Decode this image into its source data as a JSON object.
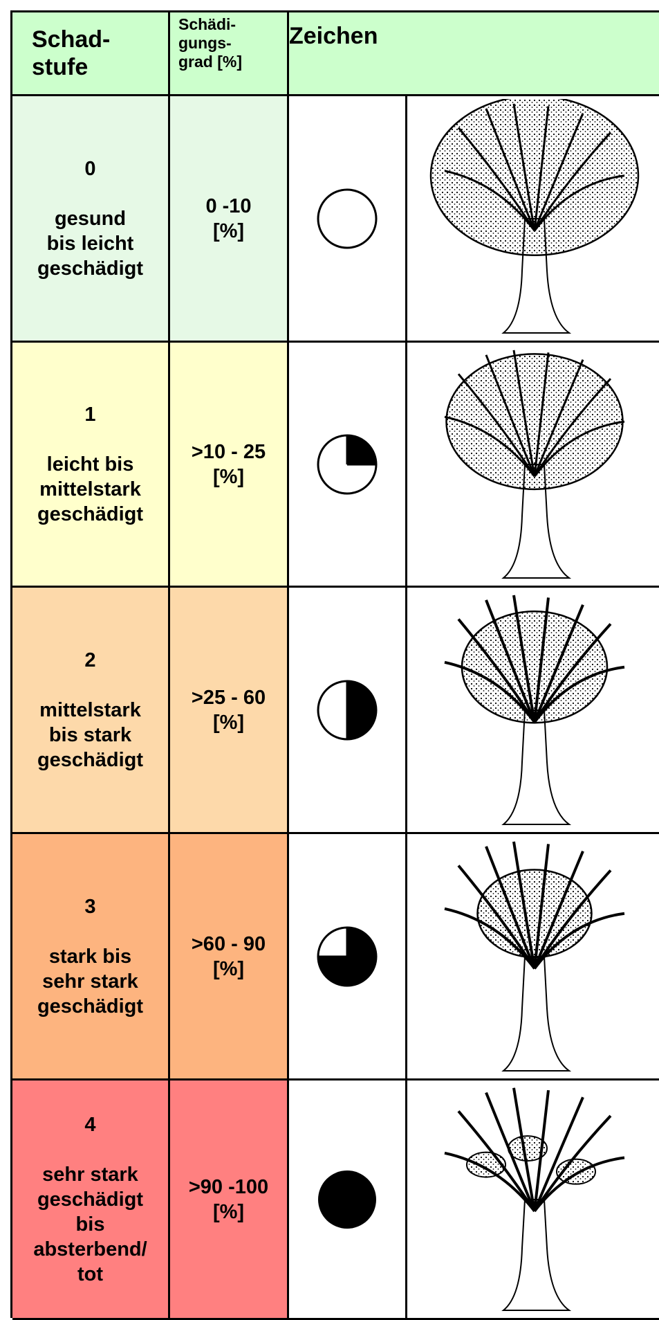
{
  "header": {
    "columns": [
      [
        "Schad-",
        "stufe"
      ],
      [
        "Schädi-",
        "gungs-",
        "grad [%]"
      ],
      [
        "Zeichen"
      ]
    ]
  },
  "rows": [
    {
      "stufe": "0",
      "description": [
        "gesund",
        "bis leicht",
        "geschädigt"
      ],
      "grad": [
        "0 -10",
        "[%]"
      ]
    },
    {
      "stufe": "1",
      "description": [
        "leicht bis",
        "mittelstark",
        "geschädigt"
      ],
      "grad": [
        ">10 - 25",
        "[%]"
      ]
    },
    {
      "stufe": "2",
      "description": [
        "mittelstark",
        "bis stark",
        "geschädigt"
      ],
      "grad": [
        ">25 - 60",
        "[%]"
      ]
    },
    {
      "stufe": "3",
      "description": [
        "stark bis",
        "sehr stark",
        "geschädigt"
      ],
      "grad": [
        ">60 - 90",
        "[%]"
      ]
    },
    {
      "stufe": "4",
      "description": [
        "sehr stark",
        "geschädigt",
        "bis",
        "absterbend/",
        "tot"
      ],
      "grad": [
        ">90 -100",
        "[%]"
      ]
    }
  ]
}
